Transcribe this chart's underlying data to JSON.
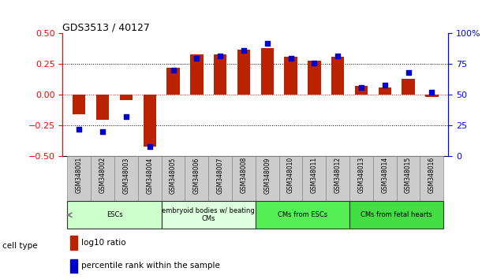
{
  "title": "GDS3513 / 40127",
  "samples": [
    "GSM348001",
    "GSM348002",
    "GSM348003",
    "GSM348004",
    "GSM348005",
    "GSM348006",
    "GSM348007",
    "GSM348008",
    "GSM348009",
    "GSM348010",
    "GSM348011",
    "GSM348012",
    "GSM348013",
    "GSM348014",
    "GSM348015",
    "GSM348016"
  ],
  "log10_ratio": [
    -0.16,
    -0.2,
    -0.04,
    -0.42,
    0.22,
    0.33,
    0.33,
    0.37,
    0.38,
    0.31,
    0.28,
    0.31,
    0.07,
    0.06,
    0.13,
    -0.02
  ],
  "percentile_rank": [
    22,
    20,
    32,
    8,
    70,
    80,
    82,
    86,
    92,
    80,
    76,
    82,
    56,
    58,
    68,
    52
  ],
  "ylim_left": [
    -0.5,
    0.5
  ],
  "ylim_right": [
    0,
    100
  ],
  "yticks_left": [
    -0.5,
    -0.25,
    0,
    0.25,
    0.5
  ],
  "yticks_right": [
    0,
    25,
    50,
    75,
    100
  ],
  "bar_color": "#bb2200",
  "dot_color": "#0000cc",
  "cell_groups": [
    {
      "label": "ESCs",
      "start": 0,
      "end": 3,
      "color": "#ccffcc"
    },
    {
      "label": "embryoid bodies w/ beating\nCMs",
      "start": 4,
      "end": 7,
      "color": "#ddffdd"
    },
    {
      "label": "CMs from ESCs",
      "start": 8,
      "end": 11,
      "color": "#55ee55"
    },
    {
      "label": "CMs from fetal hearts",
      "start": 12,
      "end": 15,
      "color": "#44dd44"
    }
  ],
  "cell_type_label": "cell type",
  "legend_items": [
    {
      "label": "log10 ratio",
      "color": "#bb2200"
    },
    {
      "label": "percentile rank within the sample",
      "color": "#0000cc"
    }
  ],
  "bg_color": "#ffffff",
  "bar_width": 0.55,
  "dot_size": 18,
  "sample_box_color": "#cccccc",
  "sample_box_edge": "#888888"
}
